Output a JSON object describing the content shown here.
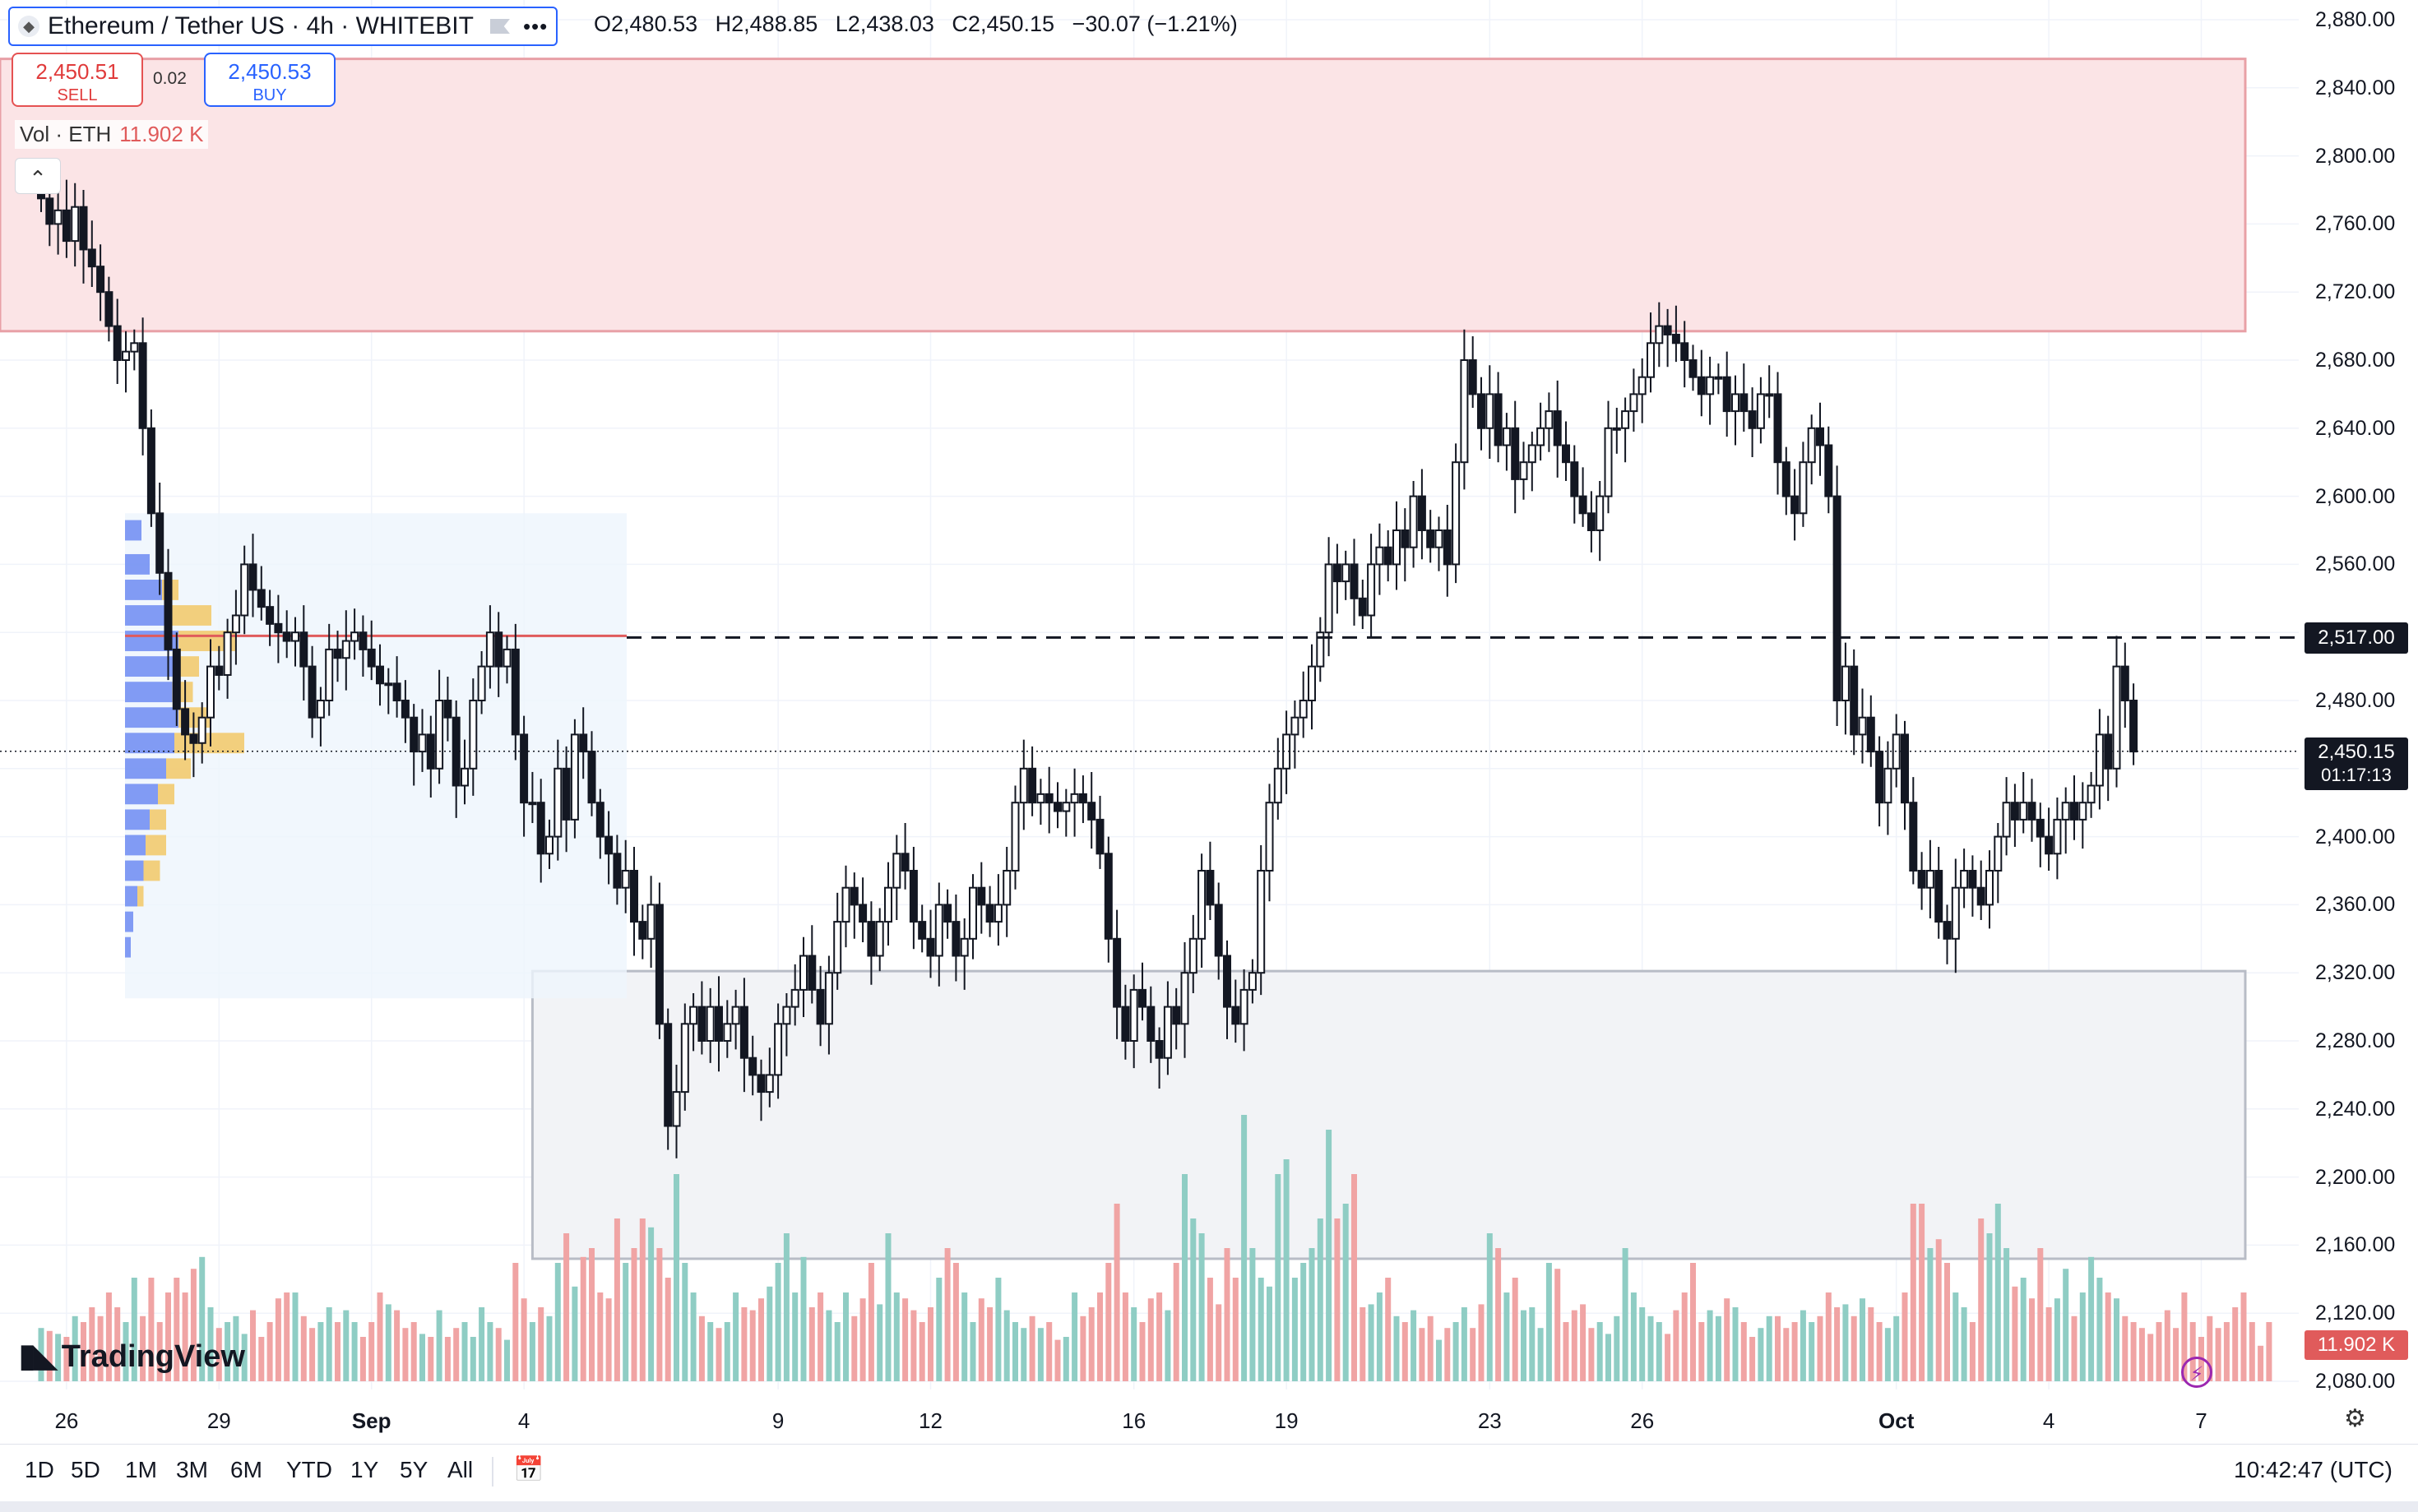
{
  "header": {
    "title": "Ethereum / Tether US · 4h · WHITEBIT",
    "more": "•••",
    "ohlc": {
      "o": "2,480.53",
      "h": "2,488.85",
      "l": "2,438.03",
      "c": "2,450.15",
      "chg": "−30.07 (−1.21%)"
    },
    "o_prefix": "O",
    "h_prefix": "H",
    "l_prefix": "L",
    "c_prefix": "C"
  },
  "trade": {
    "sell_price": "2,450.51",
    "sell_label": "SELL",
    "spread": "0.02",
    "buy_price": "2,450.53",
    "buy_label": "BUY"
  },
  "volume": {
    "label": "Vol · ETH",
    "value": "11.902 K",
    "axis_tag": "11.902 K"
  },
  "price_tags": {
    "level": "2,517.00",
    "last": "2,450.15",
    "countdown": "01:17:13"
  },
  "bottom": {
    "ranges": [
      "1D",
      "5D",
      "1M",
      "3M",
      "6M",
      "YTD",
      "1Y",
      "5Y",
      "All"
    ],
    "time": "10:42:47 (UTC)"
  },
  "brand": "TradingView",
  "colors": {
    "up": "#089981",
    "down": "#131722",
    "vol_up": "#8fcdc4",
    "vol_down": "#f0a4a4",
    "supply": "#fbe4e6",
    "demand": "#f2f3f6",
    "accent": "#2962ff"
  },
  "chart_data": {
    "type": "candlestick",
    "ylim": [
      2060,
      2890
    ],
    "yticks": [
      "2,880.00",
      "2,840.00",
      "2,800.00",
      "2,760.00",
      "2,720.00",
      "2,680.00",
      "2,640.00",
      "2,600.00",
      "2,560.00",
      "2,520.00",
      "2,480.00",
      "2,440.00",
      "2,400.00",
      "2,360.00",
      "2,320.00",
      "2,280.00",
      "2,240.00",
      "2,200.00",
      "2,160.00",
      "2,120.00",
      "2,080.00"
    ],
    "ytick_values": [
      2880,
      2840,
      2800,
      2760,
      2720,
      2680,
      2640,
      2600,
      2560,
      2520,
      2480,
      2440,
      2400,
      2360,
      2320,
      2280,
      2240,
      2200,
      2160,
      2120,
      2080
    ],
    "xticks": [
      {
        "label": "26",
        "i": 3
      },
      {
        "label": "29",
        "i": 21
      },
      {
        "label": "Sep",
        "i": 39
      },
      {
        "label": "4",
        "i": 57
      },
      {
        "label": "9",
        "i": 87
      },
      {
        "label": "12",
        "i": 105
      },
      {
        "label": "16",
        "i": 129
      },
      {
        "label": "19",
        "i": 147
      },
      {
        "label": "23",
        "i": 171
      },
      {
        "label": "26",
        "i": 189
      },
      {
        "label": "Oct",
        "i": 219
      },
      {
        "label": "4",
        "i": 237
      },
      {
        "label": "7",
        "i": 255
      }
    ],
    "zones": [
      {
        "name": "supply-zone",
        "y_top": 2857,
        "y_bottom": 2697,
        "i_start": -5,
        "i_end": 262
      },
      {
        "name": "demand-zone",
        "y_top": 2321,
        "y_bottom": 2152,
        "i_start": 58,
        "i_end": 262
      }
    ],
    "levels": [
      {
        "value": 2517,
        "style": "dashed"
      },
      {
        "value": 2450.15,
        "style": "dotted"
      }
    ],
    "closes": [
      2775,
      2760,
      2768,
      2750,
      2770,
      2745,
      2735,
      2720,
      2700,
      2680,
      2685,
      2690,
      2640,
      2590,
      2555,
      2510,
      2475,
      2460,
      2455,
      2470,
      2500,
      2495,
      2520,
      2530,
      2560,
      2545,
      2535,
      2525,
      2520,
      2515,
      2520,
      2500,
      2470,
      2480,
      2510,
      2505,
      2515,
      2520,
      2510,
      2500,
      2490,
      2490,
      2480,
      2470,
      2450,
      2460,
      2440,
      2480,
      2470,
      2430,
      2440,
      2480,
      2500,
      2520,
      2500,
      2510,
      2460,
      2420,
      2420,
      2390,
      2400,
      2440,
      2410,
      2460,
      2450,
      2420,
      2400,
      2390,
      2370,
      2380,
      2350,
      2340,
      2360,
      2290,
      2230,
      2250,
      2290,
      2300,
      2280,
      2300,
      2280,
      2290,
      2300,
      2270,
      2260,
      2250,
      2260,
      2290,
      2300,
      2310,
      2330,
      2310,
      2290,
      2320,
      2350,
      2370,
      2360,
      2350,
      2330,
      2350,
      2370,
      2390,
      2380,
      2350,
      2340,
      2330,
      2360,
      2350,
      2330,
      2340,
      2370,
      2360,
      2350,
      2360,
      2380,
      2420,
      2440,
      2420,
      2425,
      2420,
      2415,
      2420,
      2425,
      2420,
      2410,
      2390,
      2340,
      2300,
      2280,
      2310,
      2300,
      2280,
      2270,
      2300,
      2290,
      2320,
      2340,
      2380,
      2360,
      2330,
      2300,
      2290,
      2310,
      2320,
      2380,
      2420,
      2440,
      2460,
      2470,
      2480,
      2500,
      2520,
      2560,
      2550,
      2560,
      2540,
      2530,
      2560,
      2570,
      2560,
      2580,
      2570,
      2600,
      2580,
      2570,
      2580,
      2560,
      2620,
      2680,
      2660,
      2640,
      2660,
      2630,
      2640,
      2610,
      2620,
      2630,
      2640,
      2650,
      2630,
      2620,
      2600,
      2590,
      2580,
      2600,
      2640,
      2640,
      2650,
      2660,
      2670,
      2690,
      2700,
      2695,
      2690,
      2680,
      2670,
      2660,
      2670,
      2670,
      2650,
      2660,
      2650,
      2640,
      2660,
      2660,
      2620,
      2600,
      2590,
      2620,
      2640,
      2630,
      2600,
      2480,
      2500,
      2460,
      2470,
      2450,
      2420,
      2440,
      2460,
      2420,
      2380,
      2370,
      2380,
      2350,
      2340,
      2370,
      2380,
      2370,
      2360,
      2380,
      2400,
      2420,
      2410,
      2420,
      2410,
      2400,
      2390,
      2410,
      2420,
      2410,
      2420,
      2430,
      2460,
      2440,
      2500,
      2480,
      2450
    ],
    "volumes": [
      18,
      17,
      16,
      15,
      22,
      20,
      25,
      22,
      30,
      25,
      20,
      35,
      22,
      35,
      20,
      30,
      35,
      30,
      38,
      42,
      25,
      18,
      20,
      22,
      16,
      24,
      15,
      20,
      28,
      30,
      30,
      22,
      18,
      20,
      25,
      20,
      24,
      20,
      15,
      20,
      30,
      26,
      24,
      18,
      20,
      16,
      15,
      24,
      15,
      18,
      20,
      15,
      25,
      20,
      18,
      14,
      40,
      28,
      20,
      25,
      22,
      40,
      50,
      32,
      42,
      45,
      30,
      28,
      55,
      40,
      45,
      55,
      52,
      45,
      35,
      70,
      40,
      30,
      22,
      20,
      18,
      20,
      30,
      25,
      24,
      28,
      32,
      40,
      50,
      30,
      42,
      25,
      30,
      24,
      20,
      30,
      22,
      28,
      40,
      26,
      50,
      30,
      28,
      24,
      20,
      25,
      35,
      45,
      40,
      30,
      20,
      28,
      25,
      35,
      24,
      20,
      18,
      22,
      18,
      20,
      14,
      15,
      30,
      22,
      25,
      30,
      40,
      60,
      30,
      25,
      20,
      28,
      30,
      24,
      40,
      70,
      55,
      50,
      35,
      26,
      45,
      35,
      90,
      45,
      35,
      32,
      70,
      75,
      35,
      40,
      45,
      55,
      85,
      55,
      60,
      70,
      25,
      26,
      30,
      35,
      22,
      20,
      24,
      18,
      22,
      14,
      18,
      20,
      25,
      18,
      26,
      50,
      45,
      30,
      35,
      24,
      25,
      18,
      40,
      38,
      20,
      24,
      26,
      18,
      20,
      16,
      22,
      45,
      30,
      25,
      22,
      20,
      16,
      24,
      30,
      40,
      20,
      24,
      22,
      28,
      25,
      20,
      15,
      18,
      22,
      22,
      18,
      20,
      24,
      20,
      22,
      30,
      25,
      26,
      22,
      28,
      25,
      20,
      18,
      22,
      30,
      60,
      60,
      45,
      48,
      40,
      30,
      25,
      20,
      55,
      50,
      60,
      45,
      32,
      35,
      28,
      45,
      25,
      28,
      38,
      22,
      30,
      42,
      35,
      30,
      28,
      22,
      20,
      18,
      16,
      20,
      24,
      18,
      30,
      20,
      15,
      22,
      18,
      20,
      25,
      30,
      20,
      12,
      20
    ]
  }
}
